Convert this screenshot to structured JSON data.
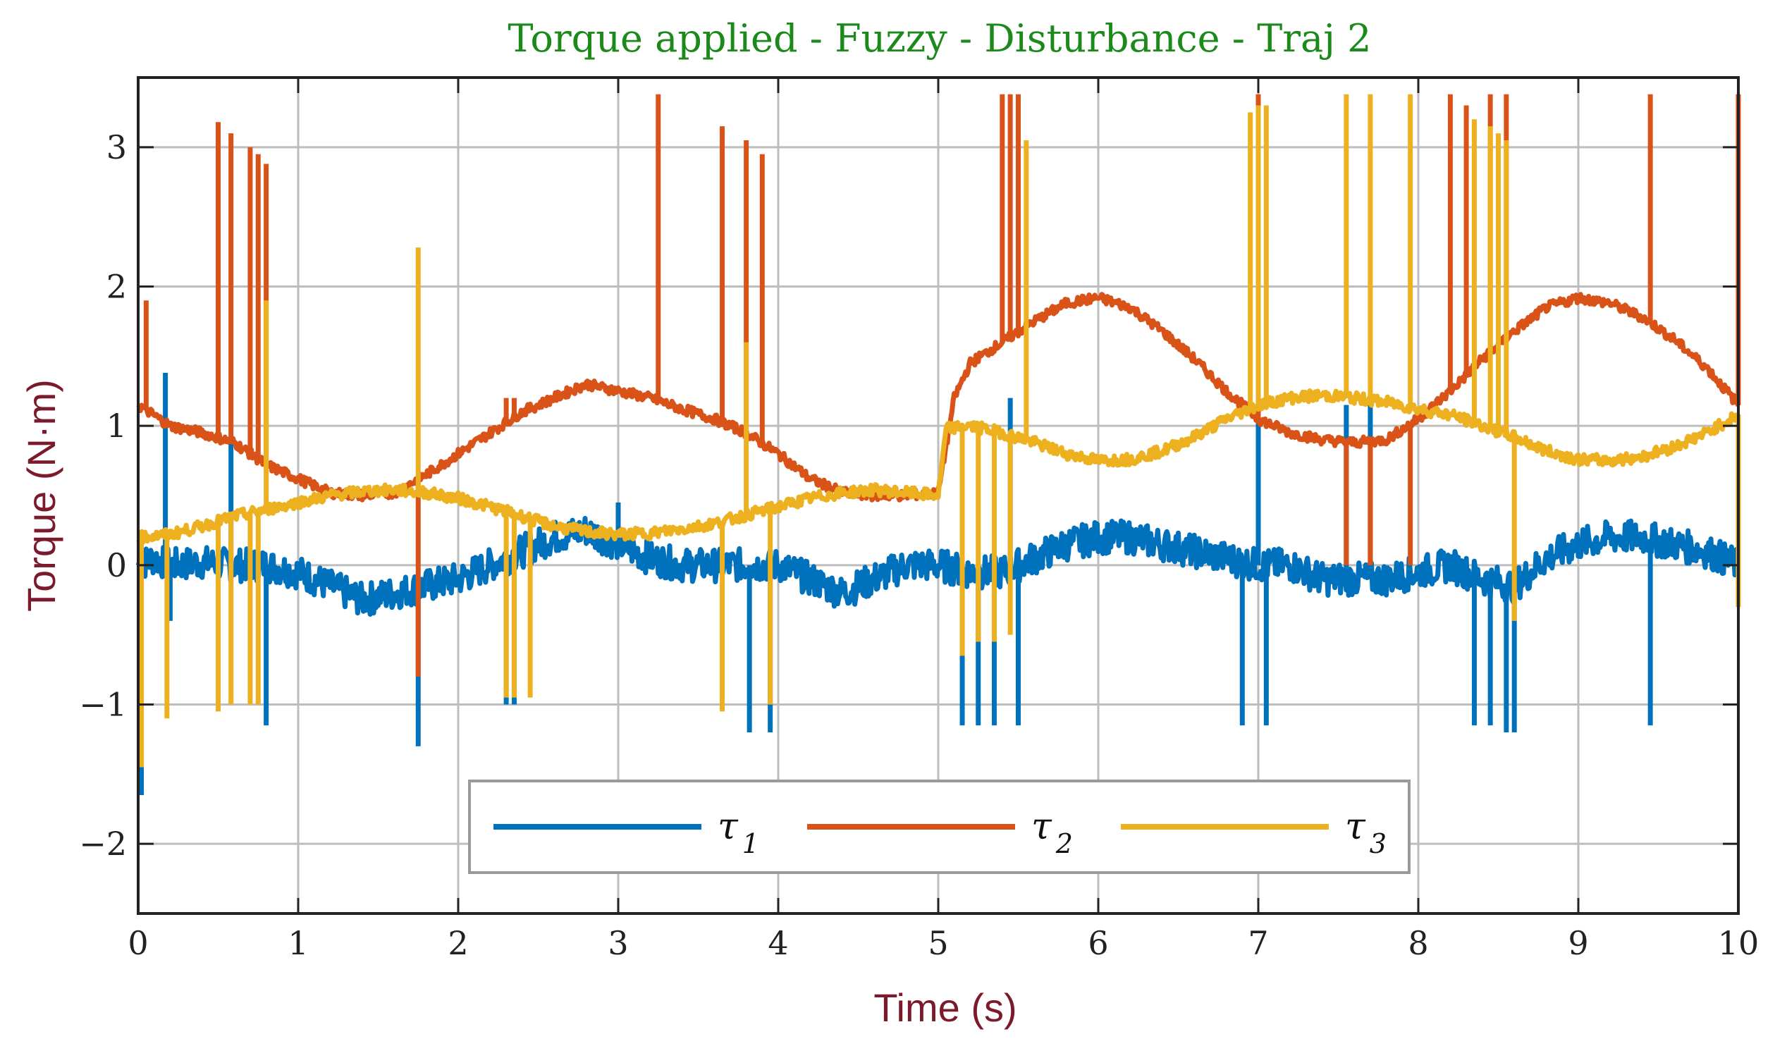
{
  "chart_data": {
    "type": "line",
    "title": "Torque applied - Fuzzy - Disturbance - Traj 2",
    "xlabel": "Time (s)",
    "ylabel": "Torque (N·m)",
    "xlim": [
      0,
      10
    ],
    "ylim": [
      -2.5,
      3.5
    ],
    "xticks": [
      0,
      1,
      2,
      3,
      4,
      5,
      6,
      7,
      8,
      9,
      10
    ],
    "yticks": [
      -2,
      -1,
      0,
      1,
      2,
      3
    ],
    "ytick_labels": [
      "−2",
      "−1",
      "0",
      "1",
      "2",
      "3"
    ],
    "grid": true,
    "legend_position": "bottom-center",
    "legend_orientation": "horizontal",
    "series": [
      {
        "name": "τ",
        "subscript": "1",
        "color": "#0072BD",
        "points": [
          [
            0,
            0.0
          ],
          [
            0.1,
            0.05
          ],
          [
            0.2,
            0.0
          ],
          [
            0.4,
            0.02
          ],
          [
            0.6,
            0.0
          ],
          [
            0.8,
            0.0
          ],
          [
            1.0,
            -0.05
          ],
          [
            1.2,
            -0.15
          ],
          [
            1.4,
            -0.25
          ],
          [
            1.6,
            -0.2
          ],
          [
            1.8,
            -0.15
          ],
          [
            2.0,
            -0.1
          ],
          [
            2.2,
            0.0
          ],
          [
            2.4,
            0.1
          ],
          [
            2.6,
            0.2
          ],
          [
            2.8,
            0.25
          ],
          [
            3.0,
            0.15
          ],
          [
            3.2,
            0.05
          ],
          [
            3.4,
            0.0
          ],
          [
            3.6,
            0.0
          ],
          [
            3.8,
            0.0
          ],
          [
            4.0,
            0.0
          ],
          [
            4.2,
            -0.1
          ],
          [
            4.4,
            -0.2
          ],
          [
            4.6,
            -0.1
          ],
          [
            4.8,
            0.0
          ],
          [
            5.0,
            0.0
          ],
          [
            5.2,
            -0.05
          ],
          [
            5.4,
            -0.05
          ],
          [
            5.6,
            0.05
          ],
          [
            5.8,
            0.15
          ],
          [
            6.0,
            0.2
          ],
          [
            6.2,
            0.2
          ],
          [
            6.4,
            0.15
          ],
          [
            6.6,
            0.1
          ],
          [
            6.8,
            0.05
          ],
          [
            7.0,
            0.0
          ],
          [
            7.2,
            0.0
          ],
          [
            7.4,
            -0.1
          ],
          [
            7.6,
            -0.1
          ],
          [
            7.8,
            -0.1
          ],
          [
            8.0,
            -0.05
          ],
          [
            8.2,
            0.0
          ],
          [
            8.4,
            -0.1
          ],
          [
            8.6,
            -0.15
          ],
          [
            8.8,
            0.05
          ],
          [
            9.0,
            0.15
          ],
          [
            9.2,
            0.2
          ],
          [
            9.4,
            0.2
          ],
          [
            9.6,
            0.15
          ],
          [
            9.8,
            0.1
          ],
          [
            10.0,
            0.0
          ]
        ],
        "spikes": [
          [
            0.02,
            -1.65
          ],
          [
            0.17,
            1.38
          ],
          [
            0.2,
            -0.4
          ],
          [
            0.58,
            0.9
          ],
          [
            0.8,
            -1.15
          ],
          [
            1.75,
            -1.3
          ],
          [
            2.3,
            -1.0
          ],
          [
            2.35,
            -1.0
          ],
          [
            3.0,
            0.45
          ],
          [
            3.82,
            -1.2
          ],
          [
            3.95,
            -1.2
          ],
          [
            5.15,
            -1.15
          ],
          [
            5.25,
            -1.15
          ],
          [
            5.35,
            -1.15
          ],
          [
            5.45,
            1.2
          ],
          [
            5.5,
            -1.15
          ],
          [
            6.9,
            -1.15
          ],
          [
            7.0,
            1.2
          ],
          [
            7.05,
            -1.15
          ],
          [
            7.55,
            1.15
          ],
          [
            7.7,
            1.15
          ],
          [
            8.35,
            -1.15
          ],
          [
            8.45,
            -1.15
          ],
          [
            8.55,
            -1.2
          ],
          [
            8.6,
            -1.2
          ],
          [
            9.45,
            -1.15
          ]
        ]
      },
      {
        "name": "τ",
        "subscript": "2",
        "color": "#D95319",
        "points": [
          [
            0,
            1.15
          ],
          [
            0.2,
            1.0
          ],
          [
            0.4,
            0.95
          ],
          [
            0.6,
            0.88
          ],
          [
            0.8,
            0.72
          ],
          [
            1.0,
            0.62
          ],
          [
            1.2,
            0.52
          ],
          [
            1.4,
            0.5
          ],
          [
            1.6,
            0.52
          ],
          [
            1.8,
            0.65
          ],
          [
            2.0,
            0.8
          ],
          [
            2.2,
            0.95
          ],
          [
            2.4,
            1.1
          ],
          [
            2.6,
            1.2
          ],
          [
            2.8,
            1.3
          ],
          [
            3.0,
            1.25
          ],
          [
            3.2,
            1.2
          ],
          [
            3.4,
            1.12
          ],
          [
            3.6,
            1.05
          ],
          [
            3.8,
            0.95
          ],
          [
            4.0,
            0.8
          ],
          [
            4.2,
            0.62
          ],
          [
            4.4,
            0.52
          ],
          [
            4.6,
            0.5
          ],
          [
            4.8,
            0.5
          ],
          [
            5.0,
            0.52
          ],
          [
            5.1,
            1.2
          ],
          [
            5.2,
            1.45
          ],
          [
            5.4,
            1.6
          ],
          [
            5.6,
            1.75
          ],
          [
            5.8,
            1.88
          ],
          [
            6.0,
            1.92
          ],
          [
            6.2,
            1.85
          ],
          [
            6.4,
            1.68
          ],
          [
            6.6,
            1.48
          ],
          [
            6.8,
            1.25
          ],
          [
            7.0,
            1.05
          ],
          [
            7.2,
            0.95
          ],
          [
            7.4,
            0.9
          ],
          [
            7.6,
            0.88
          ],
          [
            7.8,
            0.9
          ],
          [
            8.0,
            1.05
          ],
          [
            8.2,
            1.25
          ],
          [
            8.4,
            1.48
          ],
          [
            8.6,
            1.68
          ],
          [
            8.8,
            1.85
          ],
          [
            9.0,
            1.92
          ],
          [
            9.2,
            1.88
          ],
          [
            9.4,
            1.78
          ],
          [
            9.6,
            1.62
          ],
          [
            9.8,
            1.42
          ],
          [
            10.0,
            1.15
          ]
        ],
        "spikes": [
          [
            0.05,
            1.9
          ],
          [
            0.5,
            3.18
          ],
          [
            0.58,
            3.1
          ],
          [
            0.7,
            3.0
          ],
          [
            0.75,
            2.95
          ],
          [
            0.8,
            2.88
          ],
          [
            1.75,
            -0.8
          ],
          [
            2.3,
            1.2
          ],
          [
            2.35,
            1.2
          ],
          [
            3.25,
            3.38
          ],
          [
            3.65,
            3.15
          ],
          [
            3.8,
            3.05
          ],
          [
            3.9,
            2.95
          ],
          [
            5.4,
            3.38
          ],
          [
            5.45,
            3.38
          ],
          [
            5.5,
            3.38
          ],
          [
            7.0,
            3.38
          ],
          [
            7.55,
            0.0
          ],
          [
            7.7,
            0.0
          ],
          [
            7.95,
            0.0
          ],
          [
            8.2,
            3.38
          ],
          [
            8.3,
            3.3
          ],
          [
            8.45,
            3.38
          ],
          [
            8.55,
            3.38
          ],
          [
            9.45,
            3.38
          ],
          [
            10.0,
            3.38
          ]
        ]
      },
      {
        "name": "τ",
        "subscript": "3",
        "color": "#EDB120",
        "points": [
          [
            0,
            0.2
          ],
          [
            0.2,
            0.22
          ],
          [
            0.4,
            0.28
          ],
          [
            0.6,
            0.35
          ],
          [
            0.8,
            0.4
          ],
          [
            1.0,
            0.45
          ],
          [
            1.2,
            0.5
          ],
          [
            1.4,
            0.53
          ],
          [
            1.6,
            0.54
          ],
          [
            1.8,
            0.52
          ],
          [
            2.0,
            0.48
          ],
          [
            2.2,
            0.42
          ],
          [
            2.4,
            0.35
          ],
          [
            2.6,
            0.28
          ],
          [
            2.8,
            0.24
          ],
          [
            3.0,
            0.22
          ],
          [
            3.2,
            0.23
          ],
          [
            3.4,
            0.26
          ],
          [
            3.6,
            0.3
          ],
          [
            3.8,
            0.36
          ],
          [
            4.0,
            0.42
          ],
          [
            4.2,
            0.48
          ],
          [
            4.4,
            0.52
          ],
          [
            4.6,
            0.54
          ],
          [
            4.8,
            0.52
          ],
          [
            5.0,
            0.5
          ],
          [
            5.05,
            0.98
          ],
          [
            5.2,
            1.0
          ],
          [
            5.4,
            0.95
          ],
          [
            5.6,
            0.88
          ],
          [
            5.8,
            0.8
          ],
          [
            6.0,
            0.75
          ],
          [
            6.2,
            0.76
          ],
          [
            6.4,
            0.82
          ],
          [
            6.6,
            0.92
          ],
          [
            6.8,
            1.05
          ],
          [
            7.0,
            1.15
          ],
          [
            7.2,
            1.2
          ],
          [
            7.4,
            1.22
          ],
          [
            7.6,
            1.2
          ],
          [
            7.8,
            1.17
          ],
          [
            8.0,
            1.12
          ],
          [
            8.2,
            1.08
          ],
          [
            8.4,
            1.0
          ],
          [
            8.6,
            0.92
          ],
          [
            8.8,
            0.82
          ],
          [
            9.0,
            0.76
          ],
          [
            9.2,
            0.75
          ],
          [
            9.4,
            0.78
          ],
          [
            9.6,
            0.85
          ],
          [
            9.8,
            0.95
          ],
          [
            10.0,
            1.08
          ]
        ],
        "spikes": [
          [
            0.02,
            -1.45
          ],
          [
            0.18,
            -1.1
          ],
          [
            0.5,
            -1.05
          ],
          [
            0.58,
            -1.0
          ],
          [
            0.7,
            -1.0
          ],
          [
            0.75,
            -1.0
          ],
          [
            0.8,
            1.9
          ],
          [
            1.75,
            2.28
          ],
          [
            2.3,
            -0.95
          ],
          [
            2.35,
            -0.95
          ],
          [
            2.45,
            -0.95
          ],
          [
            3.65,
            -1.05
          ],
          [
            3.8,
            1.6
          ],
          [
            3.95,
            -1.0
          ],
          [
            5.15,
            -0.65
          ],
          [
            5.25,
            -0.55
          ],
          [
            5.35,
            -0.55
          ],
          [
            5.45,
            -0.5
          ],
          [
            5.55,
            3.05
          ],
          [
            6.95,
            3.25
          ],
          [
            7.0,
            3.3
          ],
          [
            7.05,
            3.3
          ],
          [
            7.55,
            3.38
          ],
          [
            7.7,
            3.38
          ],
          [
            7.95,
            3.38
          ],
          [
            8.35,
            3.2
          ],
          [
            8.45,
            3.15
          ],
          [
            8.5,
            3.1
          ],
          [
            8.55,
            3.05
          ],
          [
            8.6,
            -0.4
          ],
          [
            10.0,
            -0.3
          ]
        ]
      }
    ]
  }
}
